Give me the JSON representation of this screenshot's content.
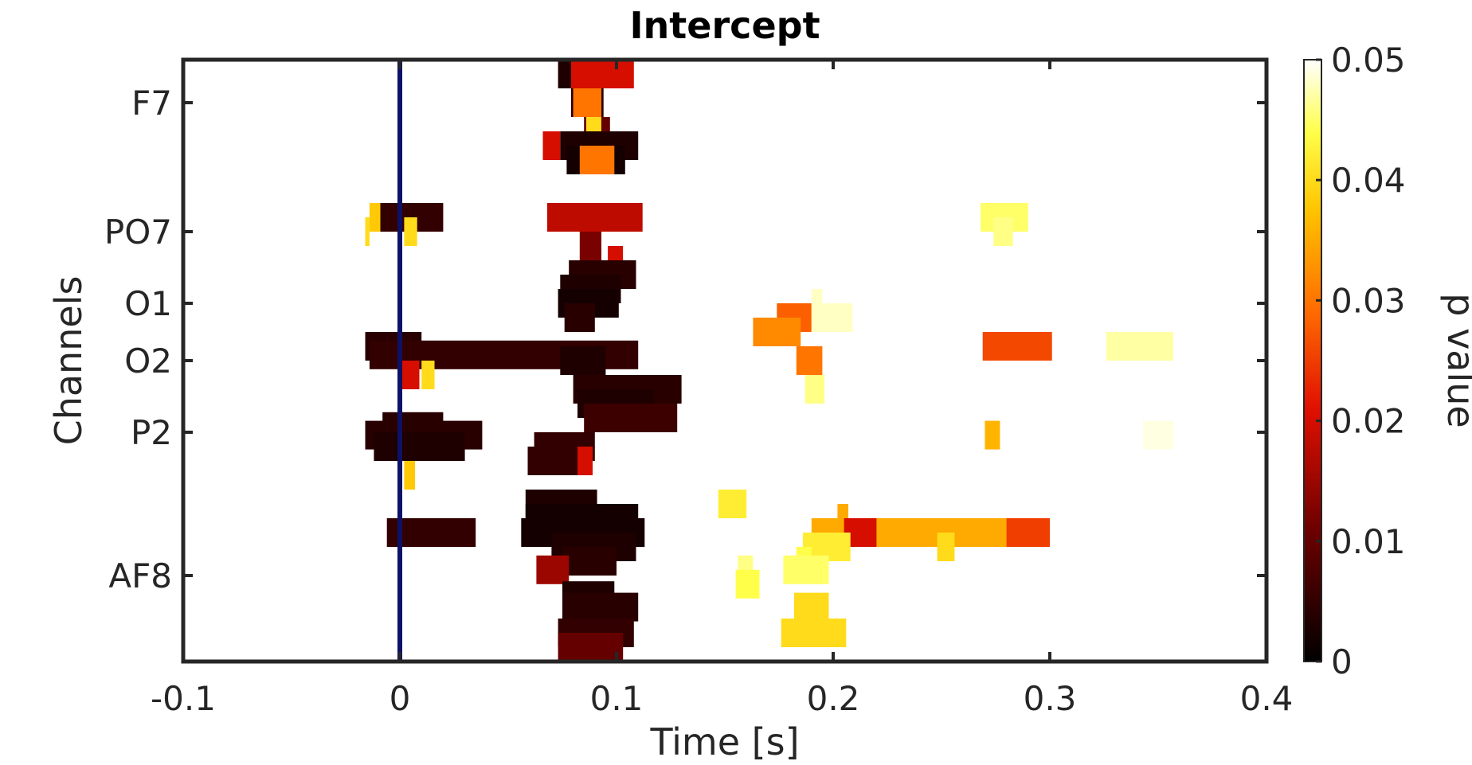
{
  "chart_data": {
    "type": "heatmap",
    "title": "Intercept",
    "xlabel": "Time [s]",
    "ylabel": "Channels",
    "xlim": [
      -0.1,
      0.4
    ],
    "x_ticks": [
      -0.1,
      0,
      0.1,
      0.2,
      0.3,
      0.4
    ],
    "x_tick_labels": [
      "-0.1",
      "0",
      "0.1",
      "0.2",
      "0.3",
      "0.4"
    ],
    "channel_rows": 21,
    "y_ticks": [
      {
        "row": 2,
        "label": "F7"
      },
      {
        "row": 6.5,
        "label": "PO7"
      },
      {
        "row": 9,
        "label": "O1"
      },
      {
        "row": 11,
        "label": "O2"
      },
      {
        "row": 13.5,
        "label": "P2"
      },
      {
        "row": 18.5,
        "label": "AF8"
      }
    ],
    "colorbar": {
      "label": "p value",
      "range": [
        0,
        0.05
      ],
      "ticks": [
        0,
        0.01,
        0.02,
        0.03,
        0.04,
        0.05
      ],
      "tick_labels": [
        "0",
        "0.01",
        "0.02",
        "0.03",
        "0.04",
        "0.05"
      ],
      "colormap": "hot",
      "colors": [
        "#000000",
        "#4d0000",
        "#b30000",
        "#ff3300",
        "#ff8000",
        "#ffcc00",
        "#ffff40",
        "#ffffff"
      ]
    },
    "event_marker": {
      "x": 0,
      "color": "#0d1266"
    },
    "series": [
      {
        "row": 1,
        "t0": 0.073,
        "t1": 0.1,
        "p": 0.003
      },
      {
        "row": 1,
        "t0": 0.079,
        "t1": 0.108,
        "p": 0.02
      },
      {
        "row": 2,
        "t0": 0.079,
        "t1": 0.094,
        "p": 0.004
      },
      {
        "row": 2,
        "t0": 0.08,
        "t1": 0.093,
        "p": 0.03
      },
      {
        "row": 3,
        "t0": 0.085,
        "t1": 0.097,
        "p": 0.01
      },
      {
        "row": 3,
        "t0": 0.086,
        "t1": 0.093,
        "p": 0.04
      },
      {
        "row": 3.5,
        "t0": 0.074,
        "t1": 0.11,
        "p": 0.003
      },
      {
        "row": 3.5,
        "t0": 0.066,
        "t1": 0.074,
        "p": 0.02
      },
      {
        "row": 4,
        "t0": 0.077,
        "t1": 0.104,
        "p": 0.002
      },
      {
        "row": 4,
        "t0": 0.083,
        "t1": 0.099,
        "p": 0.03
      },
      {
        "row": 6,
        "t0": -0.012,
        "t1": 0.02,
        "p": 0.005
      },
      {
        "row": 6,
        "t0": -0.014,
        "t1": -0.009,
        "p": 0.038
      },
      {
        "row": 6,
        "t0": 0.068,
        "t1": 0.112,
        "p": 0.018
      },
      {
        "row": 6,
        "t0": 0.268,
        "t1": 0.29,
        "p": 0.045
      },
      {
        "row": 6.5,
        "t0": -0.016,
        "t1": -0.014,
        "p": 0.04
      },
      {
        "row": 6.5,
        "t0": 0.002,
        "t1": 0.008,
        "p": 0.04
      },
      {
        "row": 6.5,
        "t0": 0.274,
        "t1": 0.283,
        "p": 0.046
      },
      {
        "row": 7,
        "t0": 0.083,
        "t1": 0.093,
        "p": 0.012
      },
      {
        "row": 7.5,
        "t0": 0.096,
        "t1": 0.103,
        "p": 0.02
      },
      {
        "row": 8,
        "t0": 0.078,
        "t1": 0.109,
        "p": 0.004
      },
      {
        "row": 8.5,
        "t0": 0.074,
        "t1": 0.102,
        "p": 0.003
      },
      {
        "row": 9,
        "t0": 0.073,
        "t1": 0.101,
        "p": 0.002
      },
      {
        "row": 9,
        "t0": 0.19,
        "t1": 0.195,
        "p": 0.048
      },
      {
        "row": 9.5,
        "t0": 0.076,
        "t1": 0.09,
        "p": 0.004
      },
      {
        "row": 9.5,
        "t0": 0.174,
        "t1": 0.19,
        "p": 0.028
      },
      {
        "row": 9.5,
        "t0": 0.19,
        "t1": 0.209,
        "p": 0.048
      },
      {
        "row": 10,
        "t0": 0.163,
        "t1": 0.185,
        "p": 0.032
      },
      {
        "row": 10.5,
        "t0": -0.016,
        "t1": 0.01,
        "p": 0.004
      },
      {
        "row": 10.5,
        "t0": 0.269,
        "t1": 0.301,
        "p": 0.026
      },
      {
        "row": 10.5,
        "t0": 0.326,
        "t1": 0.357,
        "p": 0.047
      },
      {
        "row": 10.8,
        "t0": -0.014,
        "t1": 0.11,
        "p": 0.005
      },
      {
        "row": 11,
        "t0": 0.074,
        "t1": 0.095,
        "p": 0.003
      },
      {
        "row": 11,
        "t0": 0.183,
        "t1": 0.195,
        "p": 0.03
      },
      {
        "row": 11.5,
        "t0": 0.001,
        "t1": 0.009,
        "p": 0.02
      },
      {
        "row": 11.5,
        "t0": 0.01,
        "t1": 0.016,
        "p": 0.04
      },
      {
        "row": 12,
        "t0": 0.08,
        "t1": 0.13,
        "p": 0.004
      },
      {
        "row": 12,
        "t0": 0.187,
        "t1": 0.196,
        "p": 0.046
      },
      {
        "row": 12.5,
        "t0": 0.082,
        "t1": 0.117,
        "p": 0.003
      },
      {
        "row": 13,
        "t0": 0.085,
        "t1": 0.128,
        "p": 0.006
      },
      {
        "row": 13.3,
        "t0": -0.008,
        "t1": 0.02,
        "p": 0.004
      },
      {
        "row": 13.6,
        "t0": -0.016,
        "t1": 0.038,
        "p": 0.004
      },
      {
        "row": 13.6,
        "t0": 0.27,
        "t1": 0.277,
        "p": 0.036
      },
      {
        "row": 13.6,
        "t0": 0.343,
        "t1": 0.357,
        "p": 0.049
      },
      {
        "row": 14,
        "t0": -0.012,
        "t1": 0.03,
        "p": 0.003
      },
      {
        "row": 14,
        "t0": 0.062,
        "t1": 0.09,
        "p": 0.005
      },
      {
        "row": 14.5,
        "t0": 0.059,
        "t1": 0.082,
        "p": 0.005
      },
      {
        "row": 14.5,
        "t0": 0.082,
        "t1": 0.089,
        "p": 0.02
      },
      {
        "row": 15,
        "t0": 0.002,
        "t1": 0.007,
        "p": 0.038
      },
      {
        "row": 16,
        "t0": 0.058,
        "t1": 0.091,
        "p": 0.003
      },
      {
        "row": 16,
        "t0": 0.147,
        "t1": 0.16,
        "p": 0.042
      },
      {
        "row": 16.5,
        "t0": 0.058,
        "t1": 0.11,
        "p": 0.002
      },
      {
        "row": 16.5,
        "t0": 0.202,
        "t1": 0.207,
        "p": 0.035
      },
      {
        "row": 17,
        "t0": -0.006,
        "t1": 0.035,
        "p": 0.005
      },
      {
        "row": 17,
        "t0": 0.056,
        "t1": 0.113,
        "p": 0.002
      },
      {
        "row": 17,
        "t0": 0.19,
        "t1": 0.3,
        "p": 0.035
      },
      {
        "row": 17,
        "t0": 0.205,
        "t1": 0.22,
        "p": 0.02
      },
      {
        "row": 17,
        "t0": 0.28,
        "t1": 0.3,
        "p": 0.025
      },
      {
        "row": 17.5,
        "t0": 0.07,
        "t1": 0.109,
        "p": 0.003
      },
      {
        "row": 17.5,
        "t0": 0.186,
        "t1": 0.208,
        "p": 0.042
      },
      {
        "row": 17.5,
        "t0": 0.248,
        "t1": 0.256,
        "p": 0.04
      },
      {
        "row": 18,
        "t0": 0.075,
        "t1": 0.1,
        "p": 0.004
      },
      {
        "row": 18,
        "t0": 0.183,
        "t1": 0.19,
        "p": 0.044
      },
      {
        "row": 18.3,
        "t0": 0.063,
        "t1": 0.078,
        "p": 0.015
      },
      {
        "row": 18.3,
        "t0": 0.156,
        "t1": 0.163,
        "p": 0.046
      },
      {
        "row": 18.3,
        "t0": 0.177,
        "t1": 0.198,
        "p": 0.045
      },
      {
        "row": 18.8,
        "t0": 0.155,
        "t1": 0.166,
        "p": 0.044
      },
      {
        "row": 19.2,
        "t0": 0.075,
        "t1": 0.099,
        "p": 0.003
      },
      {
        "row": 19.6,
        "t0": 0.075,
        "t1": 0.11,
        "p": 0.004
      },
      {
        "row": 19.6,
        "t0": 0.182,
        "t1": 0.198,
        "p": 0.04
      },
      {
        "row": 20,
        "t0": 0.078,
        "t1": 0.107,
        "p": 0.004
      },
      {
        "row": 20.5,
        "t0": 0.073,
        "t1": 0.108,
        "p": 0.005
      },
      {
        "row": 20.5,
        "t0": 0.176,
        "t1": 0.206,
        "p": 0.04
      },
      {
        "row": 21,
        "t0": 0.073,
        "t1": 0.103,
        "p": 0.01
      }
    ]
  }
}
